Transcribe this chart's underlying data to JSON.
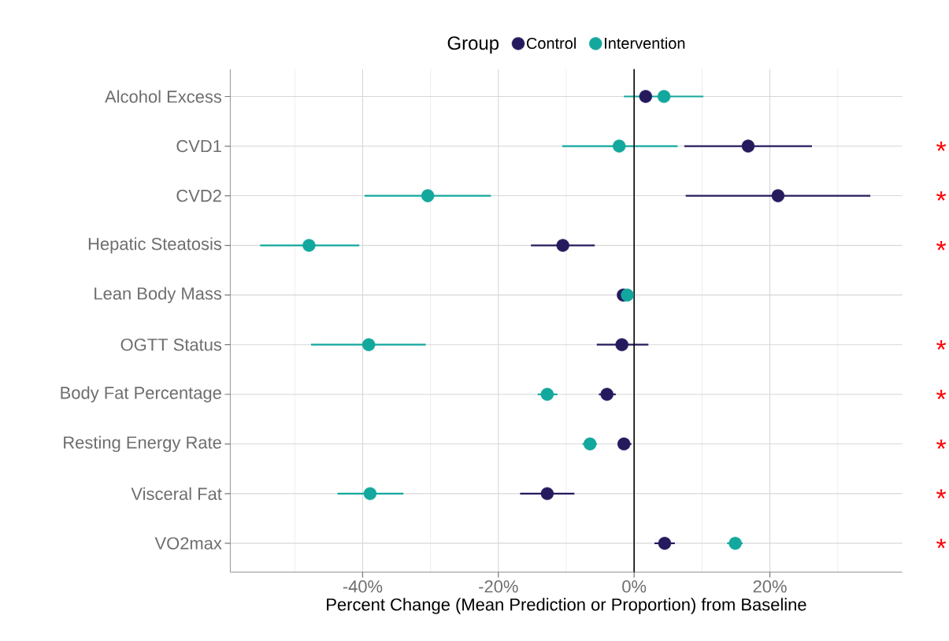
{
  "chart_data": {
    "type": "scatter",
    "orientation": "horizontal",
    "xlabel": "Percent Change (Mean Prediction or Proportion) from Baseline",
    "legend_title": "Group",
    "legend": "top",
    "grid": true,
    "marker": "circle",
    "categories": [
      "Alcohol Excess",
      "CVD1",
      "CVD2",
      "Hepatic Steatosis",
      "Lean Body Mass",
      "OGTT Status",
      "Body Fat Percentage",
      "Resting Energy Rate",
      "Visceral Fat",
      "VO2max"
    ],
    "xlim": [
      -59.5,
      39.5
    ],
    "xticks": [
      {
        "value": -40,
        "label": "-40%"
      },
      {
        "value": -20,
        "label": "-20%"
      },
      {
        "value": 0,
        "label": "0%"
      },
      {
        "value": 20,
        "label": "20%"
      }
    ],
    "ref_lines": [
      {
        "axis": "x",
        "value": 0,
        "color": "#000000"
      }
    ],
    "series": [
      {
        "name": "Control",
        "color": "#261a5e",
        "values": [
          1.7,
          16.8,
          21.2,
          -10.5,
          -1.6,
          -1.8,
          -4.0,
          -1.5,
          -12.8,
          4.5
        ],
        "errors": [
          null,
          [
            7.4,
            26.2
          ],
          [
            7.6,
            34.8
          ],
          [
            -15.2,
            -5.8
          ],
          null,
          [
            -5.5,
            2.1
          ],
          [
            -5.2,
            -2.7
          ],
          [
            -2.4,
            -0.4
          ],
          [
            -16.8,
            -8.8
          ],
          [
            3.0,
            6.0
          ]
        ]
      },
      {
        "name": "Intervention",
        "color": "#12a89d",
        "values": [
          4.4,
          -2.2,
          -30.4,
          -47.9,
          -1.0,
          -39.1,
          -12.8,
          -6.5,
          -38.9,
          14.9
        ],
        "errors": [
          [
            -1.5,
            10.2
          ],
          [
            -10.6,
            6.4
          ],
          [
            -39.7,
            -21.1
          ],
          [
            -55.1,
            -40.5
          ],
          null,
          [
            -47.6,
            -30.7
          ],
          [
            -14.2,
            -11.3
          ],
          [
            -7.6,
            -5.5
          ],
          [
            -43.7,
            -34.0
          ],
          [
            13.7,
            16.0
          ]
        ]
      }
    ],
    "annotations": [
      "*",
      "*",
      "*",
      "*",
      "*",
      "*",
      "*",
      "*"
    ]
  }
}
